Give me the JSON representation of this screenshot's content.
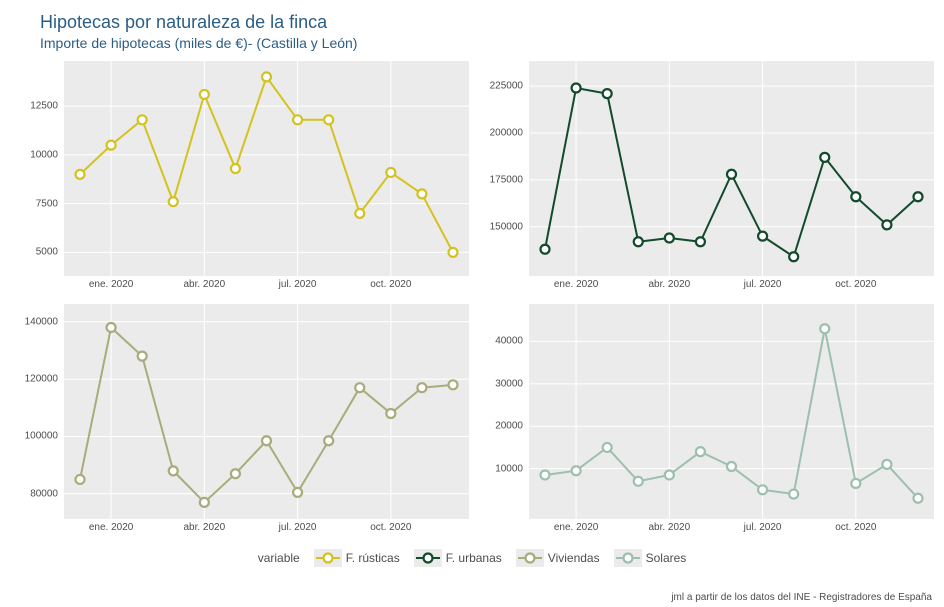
{
  "title": "Hipotecas por naturaleza de la finca",
  "subtitle": "Importe de hipotecas (miles de €)- (Castilla y León)",
  "caption": "jml a partir de los datos del INE - Registradores de España",
  "legend_title": "variable",
  "colors": {
    "rusticas": "#d4c21e",
    "urbanas": "#124a2b",
    "viviendas": "#a9ab7a",
    "solares": "#9dbfad",
    "panel_bg": "#ebebeb",
    "gridline": "#ffffff",
    "text": "#4d4d4d",
    "title": "#2b5d85"
  },
  "legend_items": [
    {
      "label": "F. rústicas",
      "color": "#d4c21e"
    },
    {
      "label": "F. urbanas",
      "color": "#124a2b"
    },
    {
      "label": "Viviendas",
      "color": "#a9ab7a"
    },
    {
      "label": "Solares",
      "color": "#9dbfad"
    }
  ],
  "x_labels": [
    "ene. 2020",
    "abr. 2020",
    "jul. 2020",
    "oct. 2020"
  ],
  "x_label_indices": [
    1,
    4,
    7,
    10
  ],
  "line_width": 2,
  "marker_radius": 4.5,
  "marker_stroke": 2.2,
  "panels": [
    {
      "name": "rusticas",
      "color": "#d4c21e",
      "ylim": [
        4200,
        14200
      ],
      "yticks": [
        5000,
        7500,
        10000,
        12500
      ],
      "values": [
        9000,
        10500,
        11800,
        7600,
        13100,
        9300,
        14000,
        11800,
        11800,
        7000,
        9100,
        8000,
        5000
      ]
    },
    {
      "name": "urbanas",
      "color": "#124a2b",
      "ylim": [
        128000,
        232000
      ],
      "yticks": [
        150000,
        175000,
        200000,
        225000
      ],
      "values": [
        138000,
        224000,
        221000,
        142000,
        144000,
        142000,
        178000,
        145000,
        134000,
        187000,
        166000,
        151000,
        166000
      ]
    },
    {
      "name": "viviendas",
      "color": "#a9ab7a",
      "ylim": [
        74000,
        142000
      ],
      "yticks": [
        80000,
        100000,
        120000,
        140000
      ],
      "values": [
        85000,
        138000,
        128000,
        88000,
        77000,
        87000,
        98500,
        80500,
        98500,
        117000,
        108000,
        117000,
        118000
      ]
    },
    {
      "name": "solares",
      "color": "#9dbfad",
      "ylim": [
        0,
        46000
      ],
      "yticks": [
        10000,
        20000,
        30000,
        40000
      ],
      "values": [
        8500,
        9500,
        15000,
        7000,
        8500,
        14000,
        10500,
        5000,
        4000,
        43000,
        6500,
        11000,
        3000
      ]
    }
  ]
}
